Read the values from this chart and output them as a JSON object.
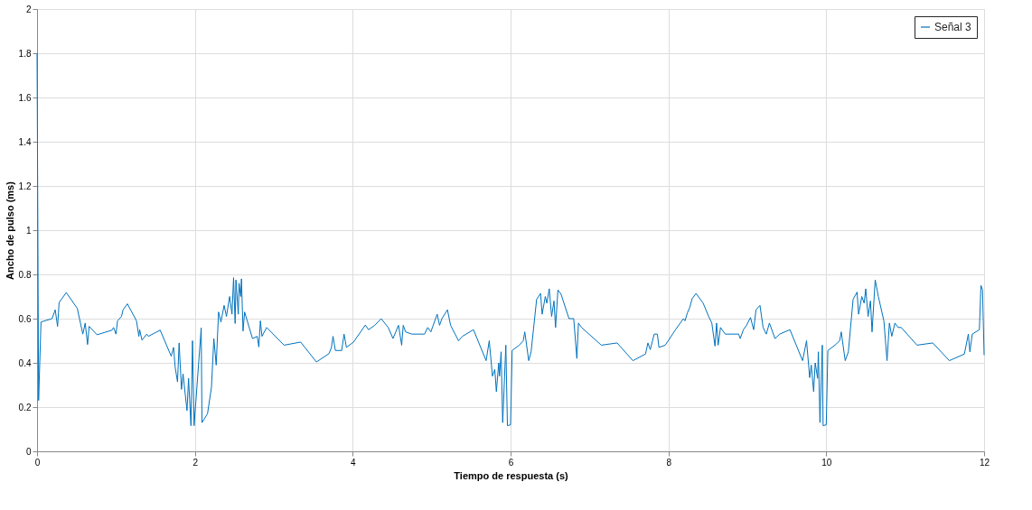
{
  "chart_data": {
    "type": "line",
    "xlabel": "Tiempo de respuesta (s)",
    "ylabel": "Ancho de pulso (ms)",
    "xlim": [
      0,
      12
    ],
    "xticks": [
      0,
      2,
      4,
      6,
      8,
      10,
      12
    ],
    "ylim": [
      0,
      2
    ],
    "yticks": [
      0,
      0.2,
      0.4,
      0.6,
      0.8,
      1,
      1.2,
      1.4,
      1.6,
      1.8,
      2
    ],
    "grid": true,
    "legend": "top right",
    "line_style": "solid",
    "marker": "none",
    "series": [
      {
        "name": "Señal 3",
        "color": "#0072bd",
        "x": [
          0,
          0.02,
          0.05,
          0.19,
          0.23,
          0.26,
          0.28,
          0.37,
          0.51,
          0.58,
          0.61,
          0.64,
          0.66,
          0.76,
          0.95,
          0.97,
          1.0,
          1.02,
          1.07,
          1.09,
          1.145,
          1.26,
          1.29,
          1.3,
          1.33,
          1.39,
          1.41,
          1.56,
          1.7,
          1.73,
          1.75,
          1.78,
          1.8,
          1.83,
          1.85,
          1.9,
          1.92,
          1.95,
          1.97,
          1.99,
          2.08,
          2.09,
          2.16,
          2.21,
          2.24,
          2.27,
          2.3,
          2.33,
          2.37,
          2.4,
          2.44,
          2.47,
          2.49,
          2.51,
          2.52,
          2.55,
          2.56,
          2.58,
          2.59,
          2.61,
          2.63,
          2.73,
          2.79,
          2.81,
          2.83,
          2.85,
          2.91,
          3.13,
          3.34,
          3.54,
          3.7,
          3.73,
          3.75,
          3.78,
          3.86,
          3.89,
          3.92,
          4.01,
          4.16,
          4.2,
          4.28,
          4.36,
          4.45,
          4.51,
          4.58,
          4.62,
          4.64,
          4.67,
          4.75,
          4.88,
          4.91,
          4.95,
          4.99,
          5.07,
          5.1,
          5.13,
          5.2,
          5.24,
          5.34,
          5.39,
          5.53,
          5.69,
          5.73,
          5.77,
          5.8,
          5.82,
          5.85,
          5.86,
          5.88,
          5.9,
          5.94,
          5.96,
          6.0,
          6.02,
          6.11,
          6.16,
          6.18,
          6.23,
          6.26,
          6.33,
          6.38,
          6.4,
          6.44,
          6.46,
          6.49,
          6.52,
          6.55,
          6.57,
          6.6,
          6.64,
          6.74,
          6.8,
          6.84,
          6.86,
          6.9,
          7.15,
          7.35,
          7.55,
          7.71,
          7.74,
          7.77,
          7.82,
          7.86,
          7.88,
          7.96,
          8.09,
          8.19,
          8.21,
          8.24,
          8.27,
          8.3,
          8.35,
          8.44,
          8.51,
          8.55,
          8.59,
          8.61,
          8.63,
          8.66,
          8.72,
          8.89,
          8.91,
          8.95,
          8.99,
          9.04,
          9.08,
          9.11,
          9.16,
          9.2,
          9.24,
          9.28,
          9.35,
          9.41,
          9.54,
          9.7,
          9.75,
          9.79,
          9.81,
          9.84,
          9.86,
          9.89,
          9.9,
          9.92,
          9.95,
          9.96,
          10.0,
          10.02,
          10.11,
          10.17,
          10.19,
          10.24,
          10.28,
          10.34,
          10.39,
          10.41,
          10.45,
          10.48,
          10.5,
          10.53,
          10.56,
          10.58,
          10.62,
          10.66,
          10.73,
          10.77,
          10.8,
          10.83,
          10.87,
          10.91,
          10.95,
          11.15,
          11.35,
          11.56,
          11.75,
          11.8,
          11.82,
          11.85,
          11.94,
          11.96,
          11.98,
          12.0
        ],
        "values": [
          1.8,
          0.23,
          0.585,
          0.6,
          0.64,
          0.565,
          0.673,
          0.718,
          0.646,
          0.53,
          0.58,
          0.483,
          0.565,
          0.527,
          0.548,
          0.56,
          0.53,
          0.59,
          0.61,
          0.64,
          0.667,
          0.59,
          0.52,
          0.55,
          0.503,
          0.53,
          0.52,
          0.548,
          0.43,
          0.47,
          0.38,
          0.314,
          0.49,
          0.28,
          0.35,
          0.184,
          0.33,
          0.116,
          0.5,
          0.116,
          0.558,
          0.13,
          0.17,
          0.29,
          0.51,
          0.39,
          0.63,
          0.585,
          0.66,
          0.61,
          0.7,
          0.62,
          0.785,
          0.578,
          0.775,
          0.62,
          0.76,
          0.7,
          0.78,
          0.544,
          0.63,
          0.51,
          0.52,
          0.472,
          0.59,
          0.52,
          0.56,
          0.48,
          0.494,
          0.404,
          0.442,
          0.47,
          0.52,
          0.456,
          0.456,
          0.53,
          0.47,
          0.494,
          0.571,
          0.55,
          0.57,
          0.6,
          0.56,
          0.51,
          0.57,
          0.48,
          0.57,
          0.54,
          0.53,
          0.53,
          0.53,
          0.56,
          0.54,
          0.62,
          0.57,
          0.6,
          0.64,
          0.57,
          0.5,
          0.52,
          0.55,
          0.41,
          0.5,
          0.34,
          0.37,
          0.27,
          0.4,
          0.34,
          0.45,
          0.13,
          0.48,
          0.116,
          0.12,
          0.456,
          0.48,
          0.5,
          0.54,
          0.41,
          0.45,
          0.687,
          0.714,
          0.62,
          0.7,
          0.67,
          0.735,
          0.61,
          0.68,
          0.56,
          0.73,
          0.71,
          0.6,
          0.6,
          0.42,
          0.58,
          0.56,
          0.48,
          0.49,
          0.41,
          0.44,
          0.49,
          0.46,
          0.53,
          0.53,
          0.47,
          0.48,
          0.55,
          0.6,
          0.59,
          0.626,
          0.65,
          0.69,
          0.714,
          0.67,
          0.61,
          0.58,
          0.476,
          0.58,
          0.48,
          0.56,
          0.53,
          0.53,
          0.51,
          0.55,
          0.57,
          0.605,
          0.55,
          0.64,
          0.66,
          0.56,
          0.53,
          0.58,
          0.51,
          0.53,
          0.55,
          0.41,
          0.5,
          0.333,
          0.39,
          0.27,
          0.4,
          0.33,
          0.45,
          0.13,
          0.48,
          0.116,
          0.12,
          0.456,
          0.48,
          0.5,
          0.54,
          0.41,
          0.45,
          0.687,
          0.72,
          0.62,
          0.7,
          0.67,
          0.735,
          0.61,
          0.68,
          0.54,
          0.775,
          0.7,
          0.59,
          0.41,
          0.58,
          0.52,
          0.58,
          0.56,
          0.56,
          0.48,
          0.49,
          0.41,
          0.44,
          0.53,
          0.45,
          0.53,
          0.55,
          0.75,
          0.73,
          0.435
        ]
      }
    ]
  }
}
